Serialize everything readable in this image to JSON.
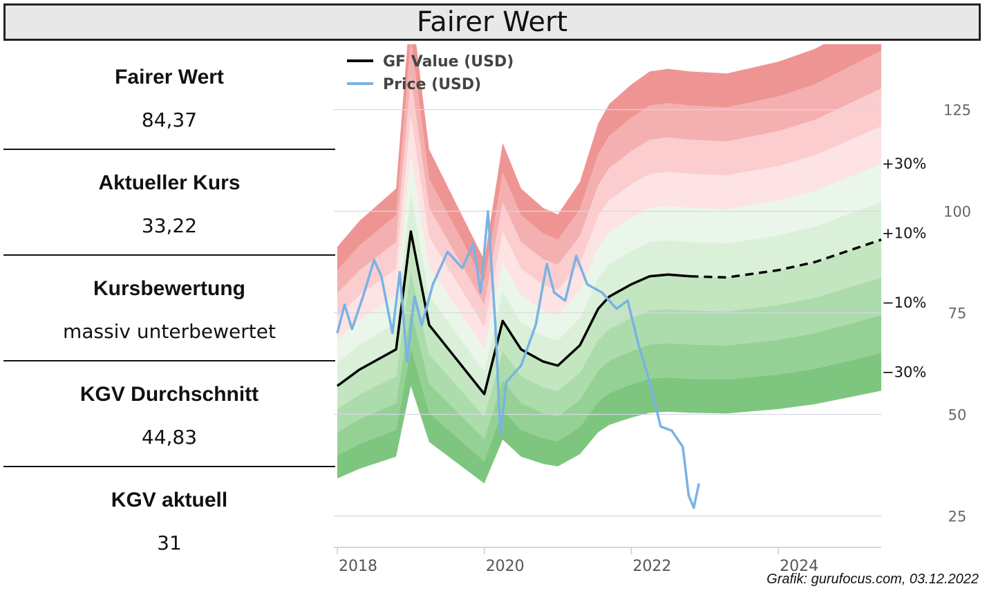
{
  "header": {
    "title": "Fairer Wert"
  },
  "metrics": [
    {
      "label": "Fairer Wert",
      "value": "84,37"
    },
    {
      "label": "Aktueller Kurs",
      "value": "33,22"
    },
    {
      "label": "Kursbewertung",
      "value": "massiv unterbewertet"
    },
    {
      "label": "KGV Durchschnitt",
      "value": "44,83"
    },
    {
      "label": "KGV aktuell",
      "value": "31"
    }
  ],
  "credit": "Grafik: gurufocus.com, 03.12.2022",
  "chart_data": {
    "type": "line",
    "legend": {
      "position": "top-left",
      "entries": [
        "GF Value (USD)",
        "Price (USD)"
      ]
    },
    "xlim": [
      2018.0,
      2025.4
    ],
    "ylim": [
      21,
      136
    ],
    "x_ticks": [
      "2018",
      "2020",
      "2022",
      "2024"
    ],
    "y_ticks": [
      "25",
      "50",
      "75",
      "100",
      "125"
    ],
    "band_labels": [
      "+30%",
      "+10%",
      "−10%",
      "−30%"
    ],
    "grid": "horizontal",
    "colors": {
      "gf_value": "#000000",
      "price": "#7ab2e6",
      "red_band": "#ef6f6c",
      "green_band": "#7dc77f"
    },
    "series": [
      {
        "name": "GF Value (USD)",
        "style": "solid-then-dashed",
        "x": [
          2018.0,
          2018.3,
          2018.8,
          2019.0,
          2019.25,
          2020.0,
          2020.25,
          2020.5,
          2020.8,
          2021.0,
          2021.3,
          2021.55,
          2021.7,
          2022.0,
          2022.25,
          2022.5,
          2022.8,
          2023.3,
          2024.0,
          2024.5,
          2025.4
        ],
        "y": [
          57,
          61,
          66,
          95,
          72,
          55,
          73,
          66,
          63,
          62,
          67,
          76,
          79,
          82,
          84,
          84.4,
          84,
          83.7,
          85.5,
          87.5,
          93
        ]
      },
      {
        "name": "Price (USD)",
        "style": "solid",
        "x": [
          2018.0,
          2018.1,
          2018.2,
          2018.35,
          2018.5,
          2018.6,
          2018.75,
          2018.85,
          2018.95,
          2019.05,
          2019.15,
          2019.3,
          2019.5,
          2019.7,
          2019.85,
          2019.95,
          2020.05,
          2020.15,
          2020.22,
          2020.3,
          2020.5,
          2020.7,
          2020.85,
          2020.95,
          2021.1,
          2021.25,
          2021.4,
          2021.6,
          2021.8,
          2021.95,
          2022.1,
          2022.25,
          2022.4,
          2022.55,
          2022.7,
          2022.78,
          2022.85,
          2022.92
        ],
        "y": [
          70,
          77,
          71,
          79,
          88,
          84,
          70,
          85,
          63,
          79,
          72,
          82,
          90,
          86,
          92,
          80,
          100,
          72,
          45,
          58,
          62,
          72,
          87,
          80,
          78,
          89,
          82,
          80,
          76,
          78,
          67,
          58,
          47,
          46,
          42,
          30,
          27,
          33
        ]
      }
    ]
  }
}
